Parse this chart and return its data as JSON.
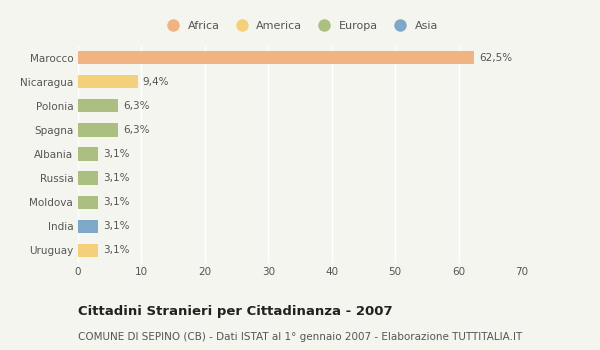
{
  "categories": [
    "Marocco",
    "Nicaragua",
    "Polonia",
    "Spagna",
    "Albania",
    "Russia",
    "Moldova",
    "India",
    "Uruguay"
  ],
  "values": [
    62.5,
    9.4,
    6.3,
    6.3,
    3.1,
    3.1,
    3.1,
    3.1,
    3.1
  ],
  "labels": [
    "62,5%",
    "9,4%",
    "6,3%",
    "6,3%",
    "3,1%",
    "3,1%",
    "3,1%",
    "3,1%",
    "3,1%"
  ],
  "colors": [
    "#F0B482",
    "#F5D07A",
    "#ABBF80",
    "#ABBF80",
    "#ABBF80",
    "#ABBF80",
    "#ABBF80",
    "#7FA8C8",
    "#F5D07A"
  ],
  "legend_labels": [
    "Africa",
    "America",
    "Europa",
    "Asia"
  ],
  "legend_colors": [
    "#F0B482",
    "#F5D07A",
    "#ABBF80",
    "#7FA8C8"
  ],
  "xlim": [
    0,
    70
  ],
  "xticks": [
    0,
    10,
    20,
    30,
    40,
    50,
    60,
    70
  ],
  "title": "Cittadini Stranieri per Cittadinanza - 2007",
  "subtitle": "COMUNE DI SEPINO (CB) - Dati ISTAT al 1° gennaio 2007 - Elaborazione TUTTITALIA.IT",
  "background_color": "#F5F5F0",
  "bar_height": 0.55,
  "title_fontsize": 9.5,
  "subtitle_fontsize": 7.5,
  "label_fontsize": 7.5,
  "tick_fontsize": 7.5,
  "legend_fontsize": 8
}
